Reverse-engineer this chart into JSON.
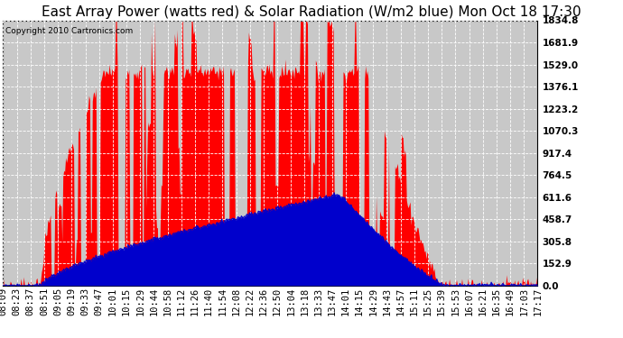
{
  "title": "East Array Power (watts red) & Solar Radiation (W/m2 blue) Mon Oct 18 17:30",
  "copyright": "Copyright 2010 Cartronics.com",
  "yticks": [
    0.0,
    152.9,
    305.8,
    458.7,
    611.6,
    764.5,
    917.4,
    1070.3,
    1223.2,
    1376.1,
    1529.0,
    1681.9,
    1834.8
  ],
  "ymax": 1834.8,
  "bg_color": "#ffffff",
  "plot_bg_color": "#c8c8c8",
  "grid_color": "#ffffff",
  "red_color": "#ff0000",
  "blue_color": "#0000cc",
  "title_fontsize": 11,
  "tick_fontsize": 7.5,
  "xtick_labels": [
    "08:09",
    "08:23",
    "08:37",
    "08:51",
    "09:05",
    "09:19",
    "09:33",
    "09:47",
    "10:01",
    "10:15",
    "10:29",
    "10:44",
    "10:58",
    "11:12",
    "11:26",
    "11:40",
    "11:54",
    "12:08",
    "12:22",
    "12:36",
    "12:50",
    "13:04",
    "13:18",
    "13:33",
    "13:47",
    "14:01",
    "14:15",
    "14:29",
    "14:43",
    "14:57",
    "15:11",
    "15:25",
    "15:39",
    "15:53",
    "16:07",
    "16:21",
    "16:35",
    "16:49",
    "17:03",
    "17:17"
  ],
  "n_points": 600
}
